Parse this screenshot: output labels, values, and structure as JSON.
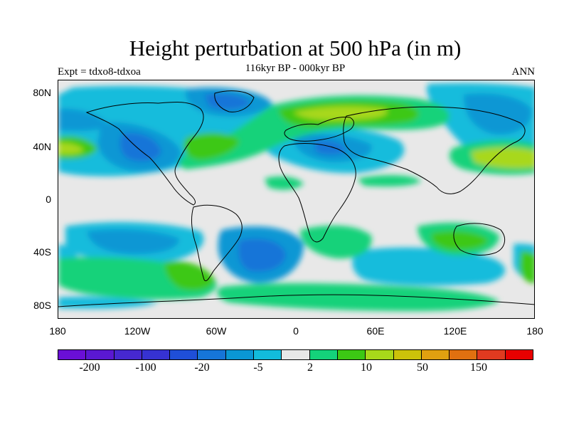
{
  "title": "Height perturbation at 500 hPa (in m)",
  "subtitle": "116kyr BP - 000kyr BP",
  "left_label": "Expt = tdxo8-tdxoa",
  "right_label": "ANN",
  "lat_labels": [
    "80N",
    "40N",
    "0",
    "40S",
    "80S"
  ],
  "lon_labels": [
    "180",
    "120W",
    "60W",
    "0",
    "60E",
    "120E",
    "180"
  ],
  "colorbar": {
    "colors": [
      "#6a0fd6",
      "#5a18d2",
      "#4628d0",
      "#3632d2",
      "#1f4fd8",
      "#1675d8",
      "#0a97d4",
      "#12bcdc",
      "#e8e8e8",
      "#14d27a",
      "#3cc814",
      "#a8d81a",
      "#ccc20a",
      "#e0a010",
      "#e07010",
      "#e03a20",
      "#e80000"
    ],
    "tick_labels": [
      "-200",
      "-100",
      "-20",
      "-5",
      "2",
      "10",
      "50",
      "150"
    ]
  },
  "colors": {
    "neutral": "#e8e8e8",
    "light_blue": "#12bcdc",
    "mid_blue": "#0a97d4",
    "blue": "#1675d8",
    "teal_green": "#14d27a",
    "green": "#3cc814",
    "yellow_green": "#a8d81a"
  }
}
